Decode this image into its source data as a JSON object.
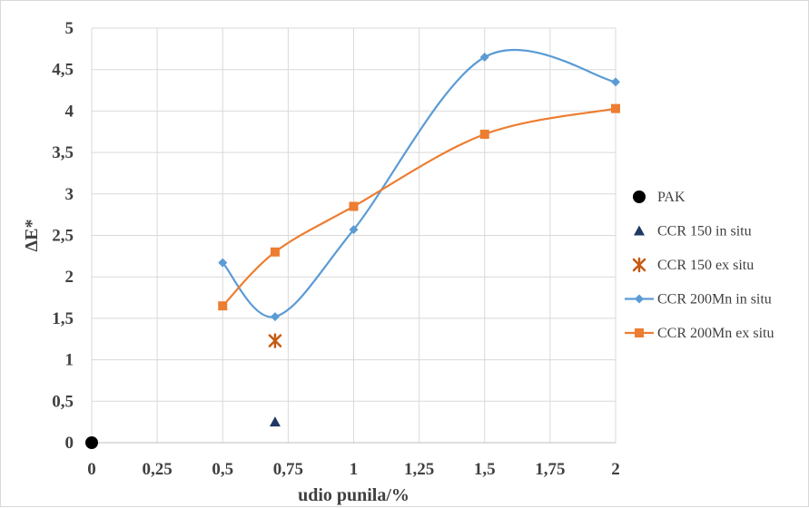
{
  "chart_data": {
    "type": "scatter",
    "title": "",
    "xlabel": "udio punila/%",
    "ylabel": "ΔE*",
    "xlim": [
      0,
      2
    ],
    "ylim": [
      0,
      5
    ],
    "x_ticks": [
      0,
      0.25,
      0.5,
      0.75,
      1,
      1.25,
      1.5,
      1.75,
      2
    ],
    "x_tick_labels": [
      "0",
      "0,25",
      "0,5",
      "0,75",
      "1",
      "1,25",
      "1,5",
      "1,75",
      "2"
    ],
    "y_ticks": [
      0,
      0.5,
      1,
      1.5,
      2,
      2.5,
      3,
      3.5,
      4,
      4.5,
      5
    ],
    "y_tick_labels": [
      "0",
      "0,5",
      "1",
      "1,5",
      "2",
      "2,5",
      "3",
      "3,5",
      "4",
      "4,5",
      "5"
    ],
    "grid": "vertical and horizontal",
    "legend_position": "right",
    "series": [
      {
        "name": "PAK",
        "marker": "circle",
        "color": "#000000",
        "line": false,
        "x": [
          0
        ],
        "y": [
          0
        ]
      },
      {
        "name": "CCR 150 in situ",
        "marker": "triangle",
        "color": "#1f3864",
        "line": false,
        "x": [
          0.7
        ],
        "y": [
          0.25
        ]
      },
      {
        "name": "CCR 150 ex situ",
        "marker": "star",
        "color": "#c55a11",
        "line": false,
        "x": [
          0.7
        ],
        "y": [
          1.23
        ]
      },
      {
        "name": "CCR 200Mn in situ",
        "marker": "diamond",
        "color": "#5b9bd5",
        "line": true,
        "x": [
          0.5,
          0.7,
          1,
          1.5,
          2
        ],
        "y": [
          2.17,
          1.52,
          2.57,
          4.65,
          4.35
        ]
      },
      {
        "name": "CCR 200Mn ex situ",
        "marker": "square",
        "color": "#ed7d31",
        "line": true,
        "x": [
          0.5,
          0.7,
          1,
          1.5,
          2
        ],
        "y": [
          1.65,
          2.3,
          2.85,
          3.72,
          4.03
        ]
      }
    ]
  }
}
